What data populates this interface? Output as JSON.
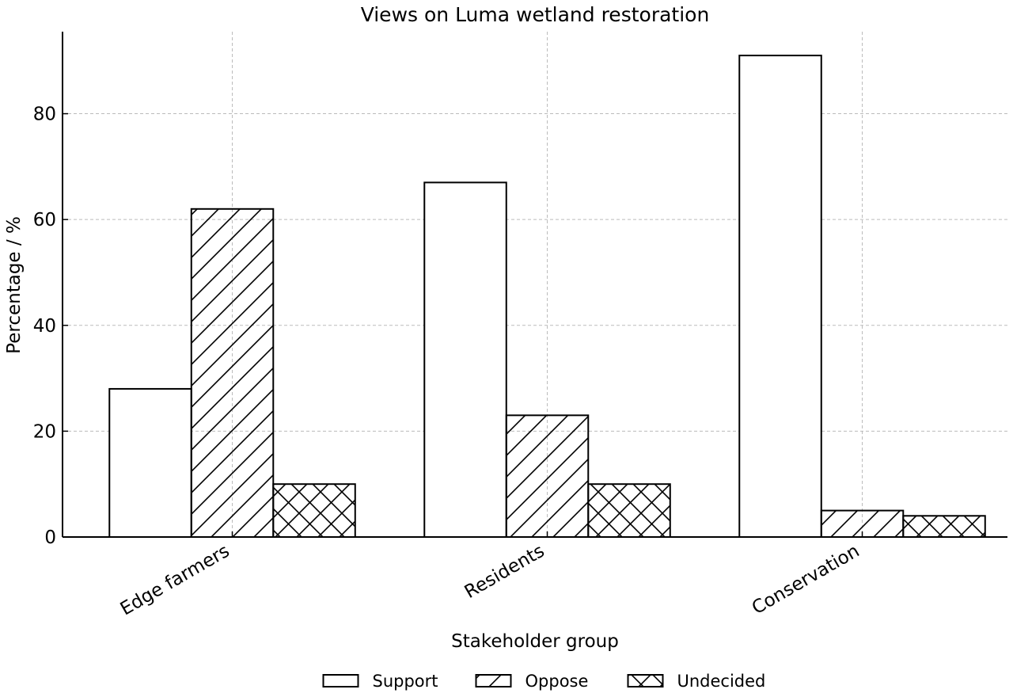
{
  "chart_data": {
    "type": "bar",
    "title": "Views on Luma wetland restoration",
    "xlabel": "Stakeholder group",
    "ylabel": "Percentage / %",
    "categories": [
      "Edge farmers",
      "Residents",
      "Conservation"
    ],
    "series": [
      {
        "name": "Support",
        "values": [
          28,
          67,
          91
        ],
        "hatch": "none"
      },
      {
        "name": "Oppose",
        "values": [
          62,
          23,
          5
        ],
        "hatch": "diagonal"
      },
      {
        "name": "Undecided",
        "values": [
          10,
          10,
          4
        ],
        "hatch": "cross"
      }
    ],
    "ylim": [
      0,
      95.5
    ],
    "yticks": [
      0,
      20,
      40,
      60,
      80
    ],
    "grid": true,
    "legend_position": "bottom-center",
    "colors": {
      "bar_fill": "#ffffff",
      "bar_edge": "#000000",
      "grid": "#bbbbbb"
    }
  }
}
